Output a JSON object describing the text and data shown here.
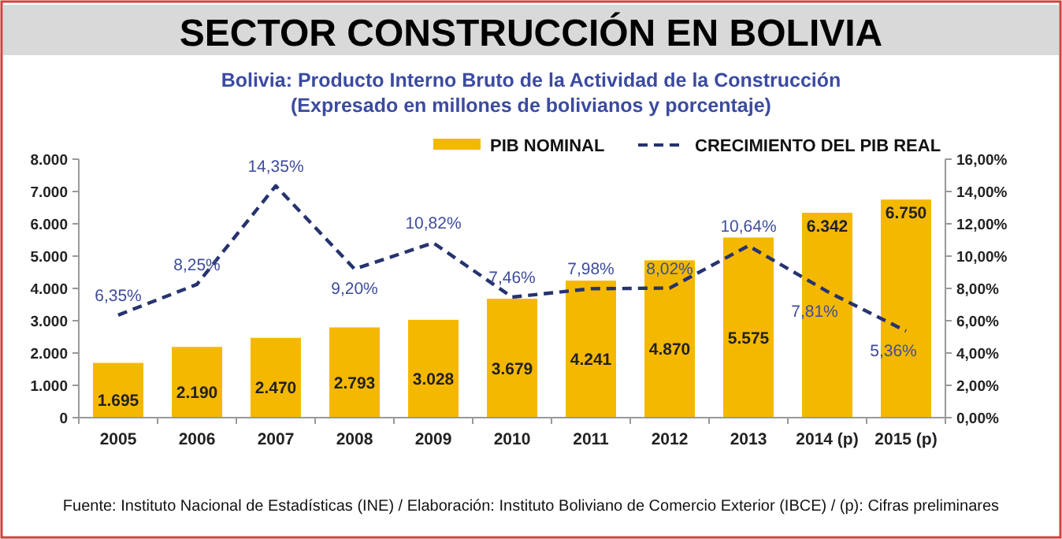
{
  "chart_data": {
    "type": "bar",
    "title": "SECTOR CONSTRUCCIÓN EN BOLIVIA",
    "subtitle": "Bolivia: Producto Interno Bruto de la Actividad de la Construcción\n(Expresado en millones de bolivianos y porcentaje)",
    "categories": [
      "2005",
      "2006",
      "2007",
      "2008",
      "2009",
      "2010",
      "2011",
      "2012",
      "2013",
      "2014 (p)",
      "2015 (p)"
    ],
    "series": [
      {
        "name": "PIB NOMINAL",
        "color": "#f5b800",
        "values": [
          1695,
          2190,
          2470,
          2793,
          3028,
          3679,
          4241,
          4870,
          5575,
          6342,
          6750
        ],
        "value_labels": [
          "1.695",
          "2.190",
          "2.470",
          "2.793",
          "3.028",
          "3.679",
          "4.241",
          "4.870",
          "5.575",
          "6.342",
          "6.750"
        ]
      },
      {
        "name": "CRECIMIENTO DEL PIB REAL",
        "type": "line",
        "axis": "y2",
        "color": "#26336e",
        "line_style": "dashed",
        "values": [
          6.35,
          8.25,
          14.35,
          9.2,
          10.82,
          7.46,
          7.98,
          8.02,
          10.64,
          7.81,
          5.36
        ],
        "value_labels": [
          "6,35%",
          "8,25%",
          "14,35%",
          "9,20%",
          "10,82%",
          "7,46%",
          "7,98%",
          "8,02%",
          "10,64%",
          "7,81%",
          "5,36%"
        ]
      }
    ],
    "ylim": [
      0,
      8000
    ],
    "yticks": [
      {
        "value": 0,
        "label": "0"
      },
      {
        "value": 1000,
        "label": "1.000"
      },
      {
        "value": 2000,
        "label": "2.000"
      },
      {
        "value": 3000,
        "label": "3.000"
      },
      {
        "value": 4000,
        "label": "4.000"
      },
      {
        "value": 5000,
        "label": "5.000"
      },
      {
        "value": 6000,
        "label": "6.000"
      },
      {
        "value": 7000,
        "label": "7.000"
      },
      {
        "value": 8000,
        "label": "8.000"
      }
    ],
    "y2lim": [
      0,
      16
    ],
    "y2ticks": [
      {
        "value": 0,
        "label": "0,00%"
      },
      {
        "value": 2,
        "label": "2,00%"
      },
      {
        "value": 4,
        "label": "4,00%"
      },
      {
        "value": 6,
        "label": "6,00%"
      },
      {
        "value": 8,
        "label": "8,00%"
      },
      {
        "value": 10,
        "label": "10,00%"
      },
      {
        "value": 12,
        "label": "12,00%"
      },
      {
        "value": 14,
        "label": "14,00%"
      },
      {
        "value": 16,
        "label": "16,00%"
      }
    ],
    "legend": "top right",
    "grid": false,
    "annotations": [
      "Fuente: Instituto Nacional de Estadísticas (INE) / Elaboración: Instituto Boliviano de Comercio Exterior (IBCE) / (p): Cifras preliminares"
    ]
  }
}
